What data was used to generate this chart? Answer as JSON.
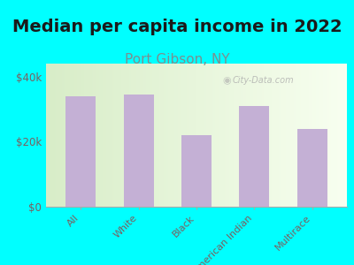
{
  "title": "Median per capita income in 2022",
  "subtitle": "Port Gibson, NY",
  "categories": [
    "All",
    "White",
    "Black",
    "American Indian",
    "Multirace"
  ],
  "values": [
    34000,
    34500,
    22000,
    31000,
    24000
  ],
  "bar_color": "#c4b0d5",
  "title_fontsize": 14,
  "title_color": "#1a1a1a",
  "subtitle_fontsize": 11,
  "subtitle_color": "#7a9090",
  "tick_label_color": "#7a6060",
  "ytick_labels": [
    "$0",
    "$20k",
    "$40k"
  ],
  "ytick_values": [
    0,
    20000,
    40000
  ],
  "ylim": [
    0,
    44000
  ],
  "background_outer": "#00ffff",
  "watermark": "City-Data.com",
  "bar_width": 0.52,
  "bg_left_color": "#d8edc8",
  "bg_right_color": "#f8fff0"
}
